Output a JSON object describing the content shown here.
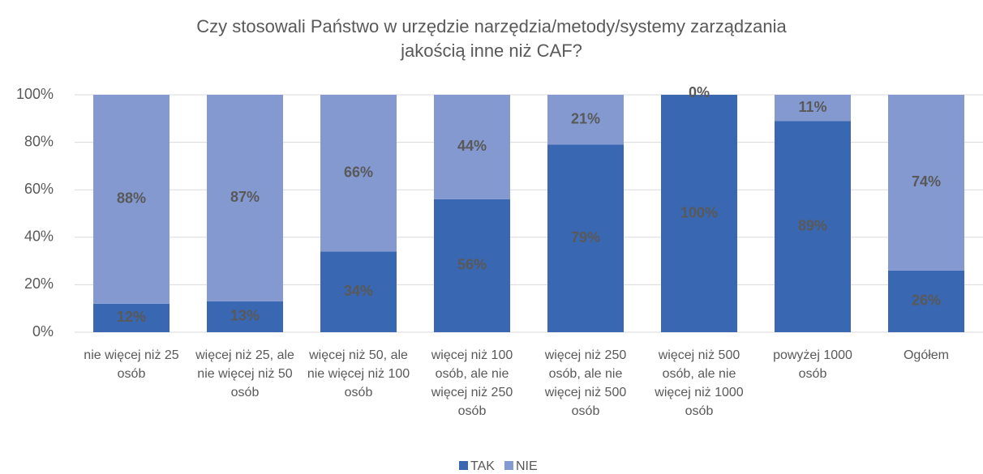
{
  "chart_data": {
    "type": "bar",
    "stacked": true,
    "title": "Czy stosowali Państwo w urzędzie narzędzia/metody/systemy zarządzania jakością inne niż CAF?",
    "categories": [
      "nie więcej niż 25 osób",
      "więcej niż 25, ale nie więcej niż 50 osób",
      "więcej niż 50, ale nie więcej niż 100 osób",
      "więcej niż 100 osób, ale nie więcej niż 250 osób",
      "więcej niż 250 osób, ale nie więcej niż 500 osób",
      "więcej niż 500 osób, ale nie więcej niż 1000 osób",
      "powyżej 1000 osób",
      "Ogółem"
    ],
    "series": [
      {
        "name": "TAK",
        "color": "#3a67b1",
        "values": [
          12,
          13,
          34,
          56,
          79,
          100,
          89,
          26
        ],
        "value_labels": [
          "12%",
          "13%",
          "34%",
          "56%",
          "79%",
          "100%",
          "89%",
          "26%"
        ]
      },
      {
        "name": "NIE",
        "color": "#8499cf",
        "values": [
          88,
          87,
          66,
          44,
          21,
          0,
          11,
          74
        ],
        "value_labels": [
          "88%",
          "87%",
          "66%",
          "44%",
          "21%",
          "0%",
          "11%",
          "74%"
        ]
      }
    ],
    "ylim": [
      0,
      100
    ],
    "yticks": [
      {
        "value": 0,
        "label": "0%"
      },
      {
        "value": 20,
        "label": "20%"
      },
      {
        "value": 40,
        "label": "40%"
      },
      {
        "value": 60,
        "label": "60%"
      },
      {
        "value": 80,
        "label": "80%"
      },
      {
        "value": 100,
        "label": "100%"
      }
    ],
    "grid": true,
    "legend": "bottom"
  }
}
